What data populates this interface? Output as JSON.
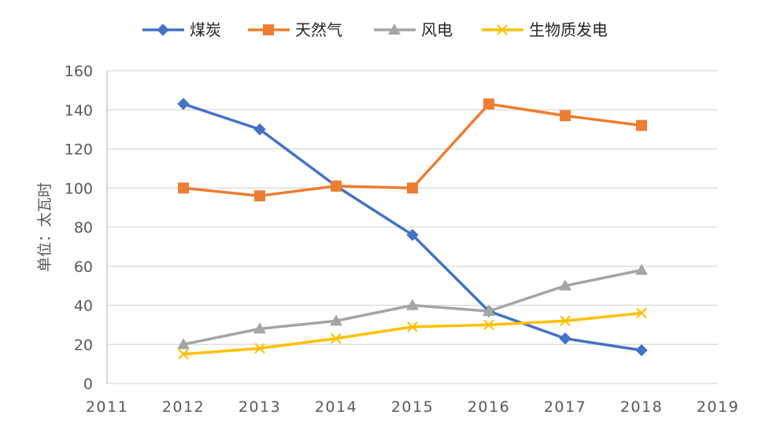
{
  "chart_data": {
    "type": "line",
    "ylabel": "单位：太瓦时",
    "ylim": [
      0,
      160
    ],
    "yticks": [
      0,
      20,
      40,
      60,
      80,
      100,
      120,
      140,
      160
    ],
    "xlim": [
      2011,
      2019
    ],
    "xticks": [
      "2011",
      "2012",
      "2013",
      "2014",
      "2015",
      "2016",
      "2017",
      "2018",
      "2019"
    ],
    "x": [
      2012,
      2013,
      2014,
      2015,
      2016,
      2017,
      2018
    ],
    "grid": true,
    "legend_position": "top",
    "series": [
      {
        "name": "煤炭",
        "color": "#4472C4",
        "marker": "diamond",
        "values": [
          143,
          130,
          101,
          76,
          37,
          23,
          17
        ]
      },
      {
        "name": "天然气",
        "color": "#ED7D31",
        "marker": "square",
        "values": [
          100,
          96,
          101,
          100,
          143,
          137,
          132
        ]
      },
      {
        "name": "风电",
        "color": "#A5A5A5",
        "marker": "triangle",
        "values": [
          20,
          28,
          32,
          40,
          37,
          50,
          58
        ]
      },
      {
        "name": "生物质发电",
        "color": "#FFC000",
        "marker": "x",
        "values": [
          15,
          18,
          23,
          29,
          30,
          32,
          36
        ]
      }
    ]
  }
}
